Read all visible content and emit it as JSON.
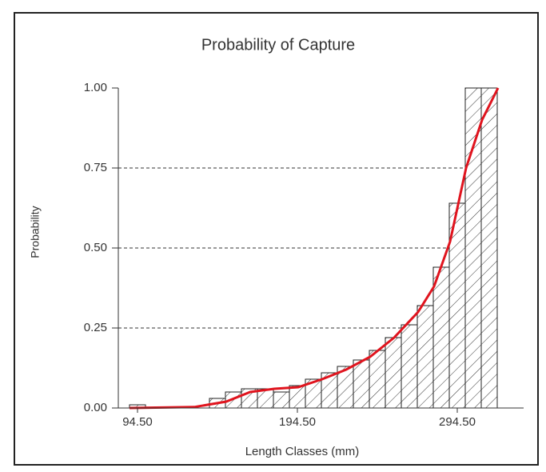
{
  "chart_data": {
    "type": "histogram",
    "title": "Probability of Capture",
    "xlabel": "Length Classes (mm)",
    "ylabel": "Probability",
    "bins": [
      89.5,
      99.5,
      109.5,
      119.5,
      129.5,
      139.5,
      149.5,
      159.5,
      169.5,
      179.5,
      189.5,
      199.5,
      209.5,
      219.5,
      229.5,
      239.5,
      249.5,
      259.5,
      269.5,
      279.5,
      289.5,
      299.5,
      309.5,
      319.5
    ],
    "values": [
      0.01,
      0,
      0,
      0,
      0,
      0.03,
      0.05,
      0.06,
      0.06,
      0.05,
      0.07,
      0.09,
      0.11,
      0.13,
      0.15,
      0.18,
      0.22,
      0.26,
      0.32,
      0.44,
      0.64,
      1.0,
      1.0
    ],
    "curve": {
      "color": "#e0141e",
      "x": [
        89.5,
        130,
        150,
        165,
        180,
        195,
        210,
        225,
        240,
        255,
        270,
        280,
        290,
        300,
        310,
        320
      ],
      "y": [
        0,
        0.003,
        0.02,
        0.05,
        0.06,
        0.065,
        0.09,
        0.12,
        0.16,
        0.22,
        0.3,
        0.38,
        0.52,
        0.75,
        0.9,
        1.0
      ]
    },
    "xlim": [
      82.5,
      336
    ],
    "ylim": [
      0,
      1
    ],
    "xticks": [
      {
        "value": 94.5,
        "label": "94.50"
      },
      {
        "value": 194.5,
        "label": "194.50"
      },
      {
        "value": 294.5,
        "label": "294.50"
      }
    ],
    "yticks": [
      {
        "value": 0,
        "label": "0.00"
      },
      {
        "value": 0.25,
        "label": "0.25"
      },
      {
        "value": 0.5,
        "label": "0.50"
      },
      {
        "value": 0.75,
        "label": "0.75"
      },
      {
        "value": 1,
        "label": "1.00"
      }
    ],
    "grid": true
  }
}
